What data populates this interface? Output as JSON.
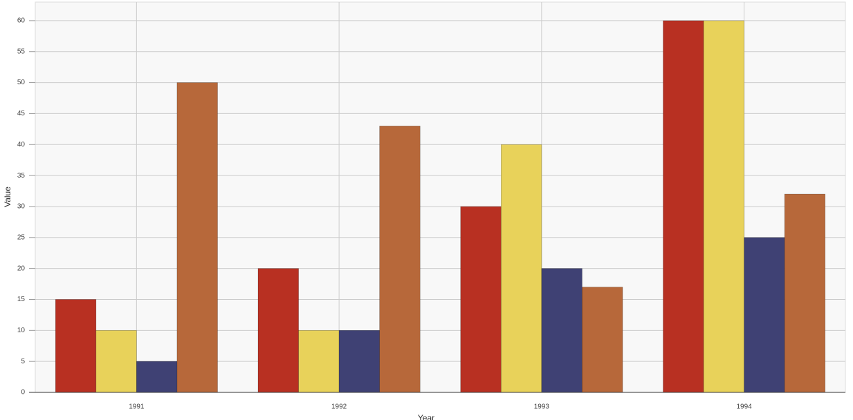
{
  "chart_data": {
    "type": "bar",
    "x_label": "Year",
    "y_label": "Value",
    "categories": [
      "1991",
      "1992",
      "1993",
      "1994"
    ],
    "series": [
      {
        "color": "#b83022",
        "values": [
          15,
          20,
          30,
          60
        ]
      },
      {
        "color": "#e8d25a",
        "values": [
          10,
          10,
          40,
          60
        ]
      },
      {
        "color": "#3f4174",
        "values": [
          5,
          10,
          20,
          25
        ]
      },
      {
        "color": "#b7683a",
        "values": [
          50,
          43,
          17,
          32
        ]
      }
    ],
    "ylim": [
      0,
      63
    ],
    "yticks": [
      0,
      5,
      10,
      15,
      20,
      25,
      30,
      35,
      40,
      45,
      50,
      55,
      60
    ],
    "grid": true
  }
}
